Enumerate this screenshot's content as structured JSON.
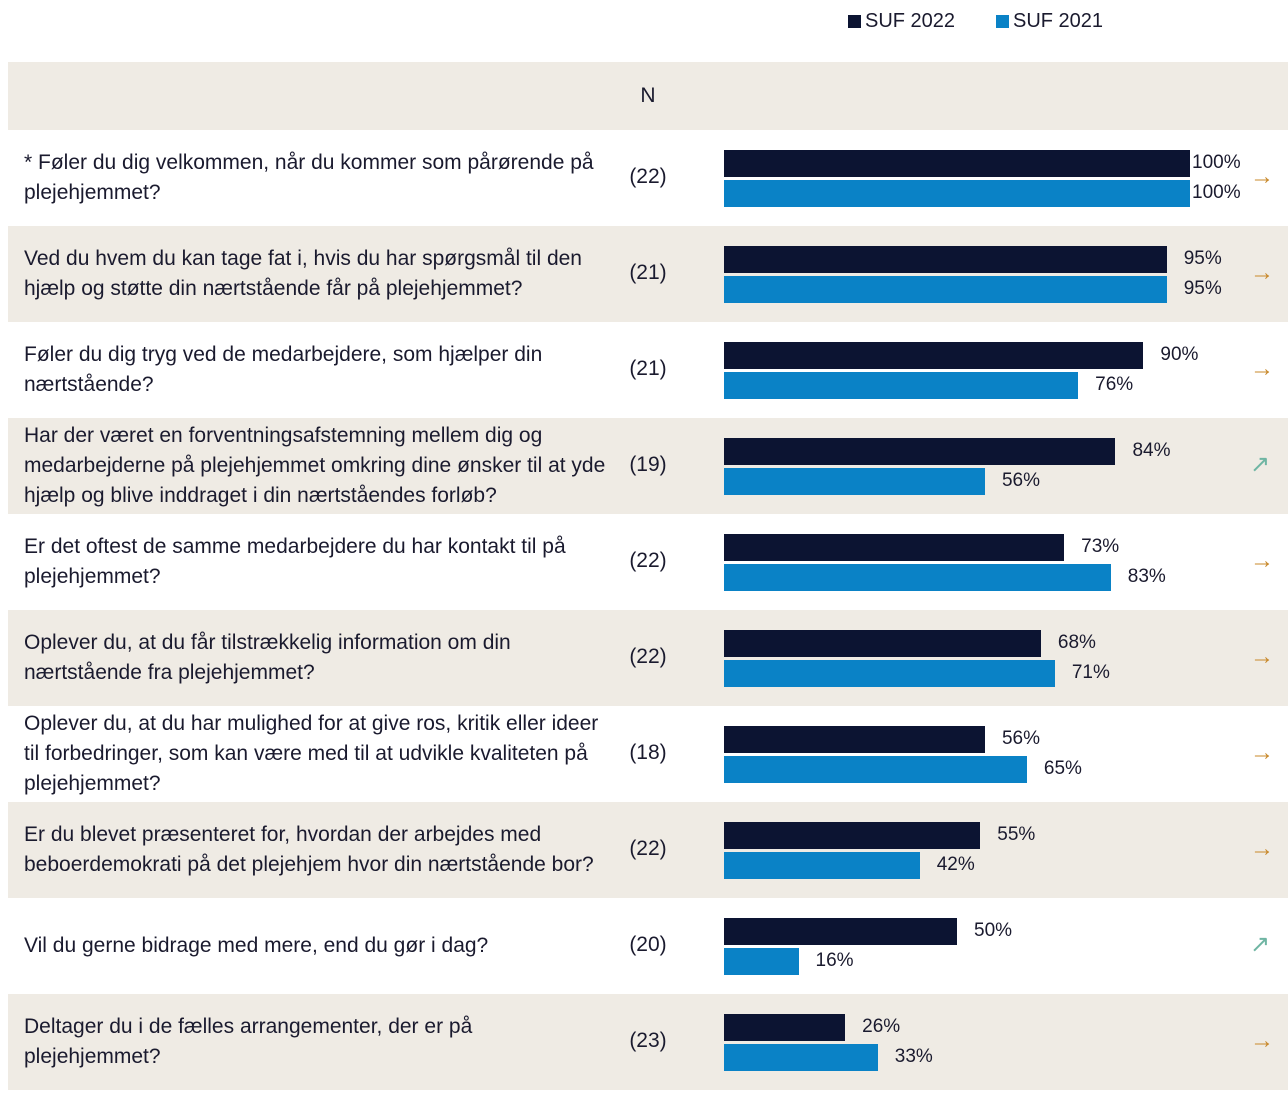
{
  "chart_data": {
    "type": "bar",
    "orientation": "horizontal",
    "column_header": "N",
    "categories": [
      "* Føler du dig velkommen, når du kommer som pårørende på plejehjemmet?",
      "Ved du hvem du kan tage fat i, hvis du har spørgsmål til den hjælp og støtte din nærtstående får på plejehjemmet?",
      "Føler du dig tryg ved de medarbejdere, som hjælper din nærtstående?",
      "Har der været en forventningsafstemning mellem dig og medarbejderne på plejehjemmet omkring dine ønsker til at yde hjælp og blive inddraget i din nærtståendes forløb?",
      "Er det oftest de samme medarbejdere du har kontakt til på plejehjemmet?",
      "Oplever du, at du får tilstrækkelig information om din nærtstående fra plejehjemmet?",
      "Oplever du, at du har mulighed for at give ros, kritik eller ideer til forbedringer, som kan være med til at udvikle kvaliteten på plejehjemmet?",
      "Er du blevet præsenteret for, hvordan der arbejdes med beboerdemokrati på det plejehjem hvor din nærtstående bor?",
      "Vil du gerne bidrage med mere, end du gør i dag?",
      "Deltager du i de fælles arrangementer, der er på plejehjemmet?"
    ],
    "n": [
      "(22)",
      "(21)",
      "(21)",
      "(19)",
      "(22)",
      "(22)",
      "(18)",
      "(22)",
      "(20)",
      "(23)"
    ],
    "trend": [
      "→",
      "→",
      "→",
      "↗",
      "→",
      "→",
      "→",
      "→",
      "↗",
      "→"
    ],
    "trend_colors": {
      "→": "#c8882a",
      "↗": "#6fb5a3"
    },
    "series": [
      {
        "name": "SUF 2022",
        "color": "#0c1432",
        "values": [
          100,
          95,
          90,
          84,
          73,
          68,
          56,
          55,
          50,
          26
        ],
        "value_labels": [
          "100%",
          "95%",
          "90%",
          "84%",
          "73%",
          "68%",
          "56%",
          "55%",
          "50%",
          "26%"
        ]
      },
      {
        "name": "SUF 2021",
        "color": "#0a82c6",
        "values": [
          100,
          95,
          76,
          56,
          83,
          71,
          65,
          42,
          16,
          33
        ],
        "value_labels": [
          "100%",
          "95%",
          "76%",
          "56%",
          "83%",
          "71%",
          "65%",
          "42%",
          "16%",
          "33%"
        ]
      }
    ],
    "xlim": [
      0,
      100
    ]
  }
}
